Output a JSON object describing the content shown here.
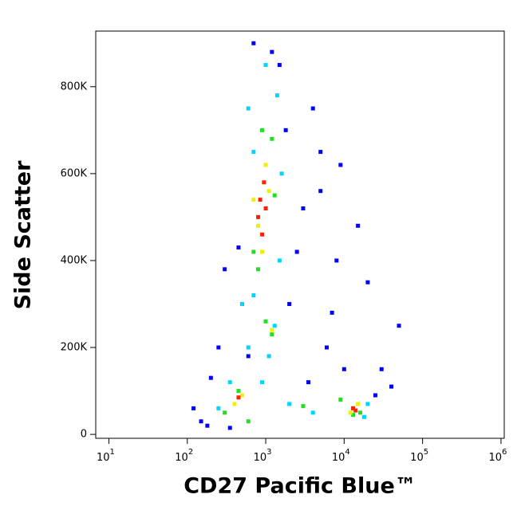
{
  "chart_data": {
    "type": "scatter",
    "xlabel": "CD27 Pacific Blue™",
    "ylabel": "Side Scatter",
    "xscale": "log",
    "xlim": [
      6.8,
      1100000
    ],
    "xticks": [
      {
        "value": 10,
        "label": "10",
        "exponent": "1"
      },
      {
        "value": 100,
        "label": "10",
        "exponent": "2"
      },
      {
        "value": 1000,
        "label": "10",
        "exponent": "3"
      },
      {
        "value": 10000,
        "label": "10",
        "exponent": "4"
      },
      {
        "value": 100000,
        "label": "10",
        "exponent": "5"
      },
      {
        "value": 1000000,
        "label": "10",
        "exponent": "6"
      }
    ],
    "ylim": [
      -9000,
      928000
    ],
    "yticks": [
      0,
      {
        "value": 200000,
        "label": "200K"
      },
      {
        "value": 400000,
        "label": "400K"
      },
      {
        "value": 600000,
        "label": "600K"
      },
      {
        "value": 800000,
        "label": "800K"
      }
    ],
    "series": [
      {
        "color": "#0000ff",
        "x": [
          150,
          200,
          250,
          300,
          450,
          600,
          2000,
          3000,
          5000,
          8000,
          20000,
          30000,
          50000,
          4000,
          6000,
          15000,
          1500,
          700,
          1200,
          3500,
          9000,
          25000,
          120,
          180,
          7000,
          2500,
          10000,
          40000,
          5000,
          1800,
          500,
          350
        ],
        "y": [
          30000,
          130000,
          200000,
          380000,
          430000,
          180000,
          300000,
          520000,
          650000,
          400000,
          350000,
          150000,
          250000,
          750000,
          200000,
          480000,
          850000,
          900000,
          880000,
          120000,
          620000,
          90000,
          60000,
          20000,
          280000,
          420000,
          150000,
          110000,
          560000,
          700000,
          300000,
          15000
        ]
      },
      {
        "color": "#00d4ff",
        "x": [
          600,
          700,
          1400,
          1500,
          1300,
          500,
          1100,
          900,
          250,
          350,
          600,
          2000,
          4000,
          20000,
          18000,
          700,
          1600,
          1000
        ],
        "y": [
          750000,
          320000,
          780000,
          400000,
          250000,
          300000,
          180000,
          120000,
          60000,
          120000,
          200000,
          70000,
          50000,
          70000,
          40000,
          650000,
          600000,
          850000
        ]
      },
      {
        "color": "#20e020",
        "x": [
          900,
          1200,
          1300,
          700,
          800,
          1000,
          450,
          300,
          600,
          9000,
          16000,
          13000,
          3000,
          1200
        ],
        "y": [
          700000,
          680000,
          550000,
          420000,
          380000,
          260000,
          100000,
          50000,
          30000,
          80000,
          50000,
          45000,
          65000,
          230000
        ]
      },
      {
        "color": "#f0f000",
        "x": [
          1000,
          1100,
          800,
          900,
          500,
          400,
          15000,
          12000,
          700,
          1200
        ],
        "y": [
          620000,
          560000,
          480000,
          420000,
          90000,
          70000,
          70000,
          50000,
          540000,
          240000
        ]
      },
      {
        "color": "#ff2000",
        "x": [
          850,
          950,
          800,
          1000,
          13000,
          14000,
          450,
          900
        ],
        "y": [
          540000,
          580000,
          500000,
          520000,
          60000,
          55000,
          85000,
          460000
        ]
      }
    ]
  }
}
